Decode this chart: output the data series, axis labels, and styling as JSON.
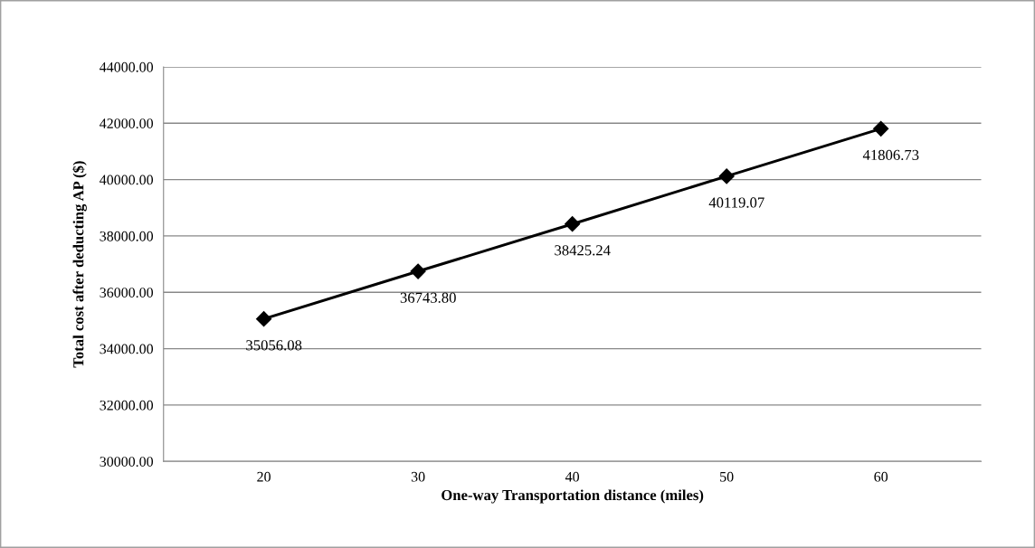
{
  "chart_data": {
    "type": "line",
    "xlabel": "One-way Transportation distance (miles)",
    "ylabel": "Total cost after deducting AP ($)",
    "categories": [
      "20",
      "30",
      "40",
      "50",
      "60"
    ],
    "series": [
      {
        "color": "#000000",
        "values": [
          35056.08,
          36743.8,
          38425.24,
          40119.07,
          41806.73
        ],
        "value_labels": [
          "35056.08",
          "36743.80",
          "38425.24",
          "40119.07",
          "41806.73"
        ]
      }
    ],
    "ylim": [
      30000,
      44000
    ],
    "yticks": [
      {
        "value": 30000,
        "label": "30000.00"
      },
      {
        "value": 32000,
        "label": "32000.00"
      },
      {
        "value": 34000,
        "label": "34000.00"
      },
      {
        "value": 36000,
        "label": "36000.00"
      },
      {
        "value": 38000,
        "label": "38000.00"
      },
      {
        "value": 40000,
        "label": "40000.00"
      },
      {
        "value": 42000,
        "label": "42000.00"
      },
      {
        "value": 44000,
        "label": "44000.00"
      }
    ],
    "grid": "y",
    "marker": "diamond",
    "line_style": "solid",
    "legend": false
  }
}
